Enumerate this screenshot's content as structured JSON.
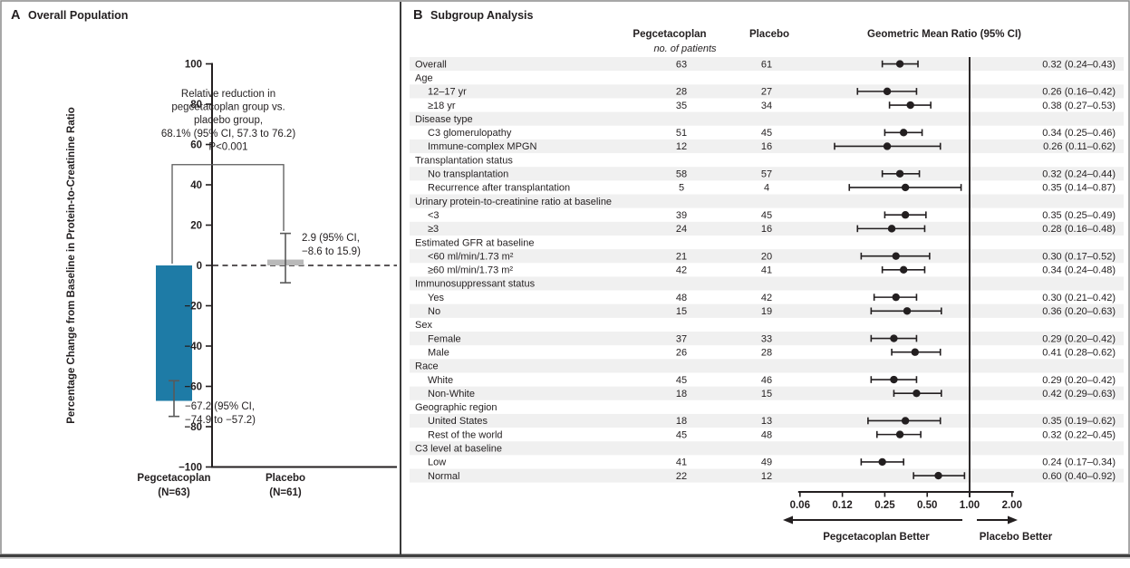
{
  "panel_a": {
    "letter": "A",
    "title": "Overall Population"
  },
  "panel_b": {
    "letter": "B",
    "title": "Subgroup Analysis",
    "columns": {
      "group1": "Pegcetacoplan",
      "group2": "Placebo",
      "n_subheader": "no. of patients",
      "ratio": "Geometric Mean Ratio (95% CI)"
    }
  },
  "colors": {
    "ink": "#231f20",
    "pegcetacoplan_bar": "#1e7ba6",
    "placebo_bar": "#b9b9b9",
    "whisker": "#595959",
    "row_band": "#f0f0f0"
  },
  "chart_data": [
    {
      "type": "bar",
      "panel": "A",
      "title": "Overall Population",
      "ylabel": "Percentage Change from Baseline in Protein-to-Creatinine Ratio",
      "ylim": [
        -100,
        100
      ],
      "ytick_step": 20,
      "zero_line": "dashed",
      "bars": [
        {
          "category": "Pegcetacoplan",
          "n_label": "(N=63)",
          "value": -67.2,
          "ci": [
            -74.9,
            -57.2
          ],
          "color": "#1e7ba6",
          "value_label_lines": [
            "−67.2 (95% CI,",
            "−74.9 to −57.2)"
          ]
        },
        {
          "category": "Placebo",
          "n_label": "(N=61)",
          "value": 2.9,
          "ci": [
            -8.6,
            15.9
          ],
          "color": "#b9b9b9",
          "value_label_lines": [
            "2.9 (95% CI,",
            "−8.6 to 15.9)"
          ]
        }
      ],
      "comparison_bracket": {
        "top_value": 50,
        "lines": [
          "Relative reduction in",
          "pegcetacoplan group vs.",
          "placebo group,",
          "68.1% (95% CI, 57.3 to 76.2)",
          "P<0.001"
        ]
      }
    },
    {
      "type": "forest",
      "panel": "B",
      "title": "Subgroup Analysis",
      "axis": {
        "scale": "log2",
        "tick_labels": [
          "0.06",
          "0.12",
          "0.25",
          "0.50",
          "1.00",
          "2.00"
        ],
        "reference": 1.0,
        "left_arrow_label": "Pegcetacoplan Better",
        "right_arrow_label": "Placebo Better"
      },
      "rows": [
        {
          "label": "Overall",
          "indent": 0,
          "n1": "63",
          "n2": "61",
          "est": 0.32,
          "lo": 0.24,
          "hi": 0.43,
          "ratio_text": "0.32 (0.24–0.43)"
        },
        {
          "label": "Age",
          "indent": 0,
          "header": true
        },
        {
          "label": "12–17 yr",
          "indent": 1,
          "n1": "28",
          "n2": "27",
          "est": 0.26,
          "lo": 0.16,
          "hi": 0.42,
          "ratio_text": "0.26 (0.16–0.42)"
        },
        {
          "label": "≥18 yr",
          "indent": 1,
          "n1": "35",
          "n2": "34",
          "est": 0.38,
          "lo": 0.27,
          "hi": 0.53,
          "ratio_text": "0.38 (0.27–0.53)"
        },
        {
          "label": "Disease type",
          "indent": 0,
          "header": true
        },
        {
          "label": "C3 glomerulopathy",
          "indent": 1,
          "n1": "51",
          "n2": "45",
          "est": 0.34,
          "lo": 0.25,
          "hi": 0.46,
          "ratio_text": "0.34 (0.25–0.46)"
        },
        {
          "label": "Immune-complex MPGN",
          "indent": 1,
          "n1": "12",
          "n2": "16",
          "est": 0.26,
          "lo": 0.11,
          "hi": 0.62,
          "ratio_text": "0.26 (0.11–0.62)"
        },
        {
          "label": "Transplantation status",
          "indent": 0,
          "header": true
        },
        {
          "label": "No transplantation",
          "indent": 1,
          "n1": "58",
          "n2": "57",
          "est": 0.32,
          "lo": 0.24,
          "hi": 0.44,
          "ratio_text": "0.32 (0.24–0.44)"
        },
        {
          "label": "Recurrence after transplantation",
          "indent": 1,
          "n1": "5",
          "n2": "4",
          "est": 0.35,
          "lo": 0.14,
          "hi": 0.87,
          "ratio_text": "0.35 (0.14–0.87)"
        },
        {
          "label": "Urinary protein-to-creatinine ratio at baseline",
          "indent": 0,
          "header": true
        },
        {
          "label": "<3",
          "indent": 1,
          "n1": "39",
          "n2": "45",
          "est": 0.35,
          "lo": 0.25,
          "hi": 0.49,
          "ratio_text": "0.35 (0.25–0.49)"
        },
        {
          "label": "≥3",
          "indent": 1,
          "n1": "24",
          "n2": "16",
          "est": 0.28,
          "lo": 0.16,
          "hi": 0.48,
          "ratio_text": "0.28 (0.16–0.48)"
        },
        {
          "label": "Estimated GFR at baseline",
          "indent": 0,
          "header": true
        },
        {
          "label": "<60 ml/min/1.73 m²",
          "indent": 1,
          "n1": "21",
          "n2": "20",
          "est": 0.3,
          "lo": 0.17,
          "hi": 0.52,
          "ratio_text": "0.30 (0.17–0.52)"
        },
        {
          "label": "≥60 ml/min/1.73 m²",
          "indent": 1,
          "n1": "42",
          "n2": "41",
          "est": 0.34,
          "lo": 0.24,
          "hi": 0.48,
          "ratio_text": "0.34 (0.24–0.48)"
        },
        {
          "label": "Immunosuppressant status",
          "indent": 0,
          "header": true
        },
        {
          "label": "Yes",
          "indent": 1,
          "n1": "48",
          "n2": "42",
          "est": 0.3,
          "lo": 0.21,
          "hi": 0.42,
          "ratio_text": "0.30 (0.21–0.42)"
        },
        {
          "label": "No",
          "indent": 1,
          "n1": "15",
          "n2": "19",
          "est": 0.36,
          "lo": 0.2,
          "hi": 0.63,
          "ratio_text": "0.36 (0.20–0.63)"
        },
        {
          "label": "Sex",
          "indent": 0,
          "header": true
        },
        {
          "label": "Female",
          "indent": 1,
          "n1": "37",
          "n2": "33",
          "est": 0.29,
          "lo": 0.2,
          "hi": 0.42,
          "ratio_text": "0.29 (0.20–0.42)"
        },
        {
          "label": "Male",
          "indent": 1,
          "n1": "26",
          "n2": "28",
          "est": 0.41,
          "lo": 0.28,
          "hi": 0.62,
          "ratio_text": "0.41 (0.28–0.62)"
        },
        {
          "label": "Race",
          "indent": 0,
          "header": true
        },
        {
          "label": "White",
          "indent": 1,
          "n1": "45",
          "n2": "46",
          "est": 0.29,
          "lo": 0.2,
          "hi": 0.42,
          "ratio_text": "0.29 (0.20–0.42)"
        },
        {
          "label": "Non-White",
          "indent": 1,
          "n1": "18",
          "n2": "15",
          "est": 0.42,
          "lo": 0.29,
          "hi": 0.63,
          "ratio_text": "0.42 (0.29–0.63)"
        },
        {
          "label": "Geographic region",
          "indent": 0,
          "header": true
        },
        {
          "label": "United States",
          "indent": 1,
          "n1": "18",
          "n2": "13",
          "est": 0.35,
          "lo": 0.19,
          "hi": 0.62,
          "ratio_text": "0.35 (0.19–0.62)"
        },
        {
          "label": "Rest of the world",
          "indent": 1,
          "n1": "45",
          "n2": "48",
          "est": 0.32,
          "lo": 0.22,
          "hi": 0.45,
          "ratio_text": "0.32 (0.22–0.45)"
        },
        {
          "label": "C3 level at baseline",
          "indent": 0,
          "header": true
        },
        {
          "label": "Low",
          "indent": 1,
          "n1": "41",
          "n2": "49",
          "est": 0.24,
          "lo": 0.17,
          "hi": 0.34,
          "ratio_text": "0.24 (0.17–0.34)"
        },
        {
          "label": "Normal",
          "indent": 1,
          "n1": "22",
          "n2": "12",
          "est": 0.6,
          "lo": 0.4,
          "hi": 0.92,
          "ratio_text": "0.60 (0.40–0.92)"
        }
      ]
    }
  ]
}
